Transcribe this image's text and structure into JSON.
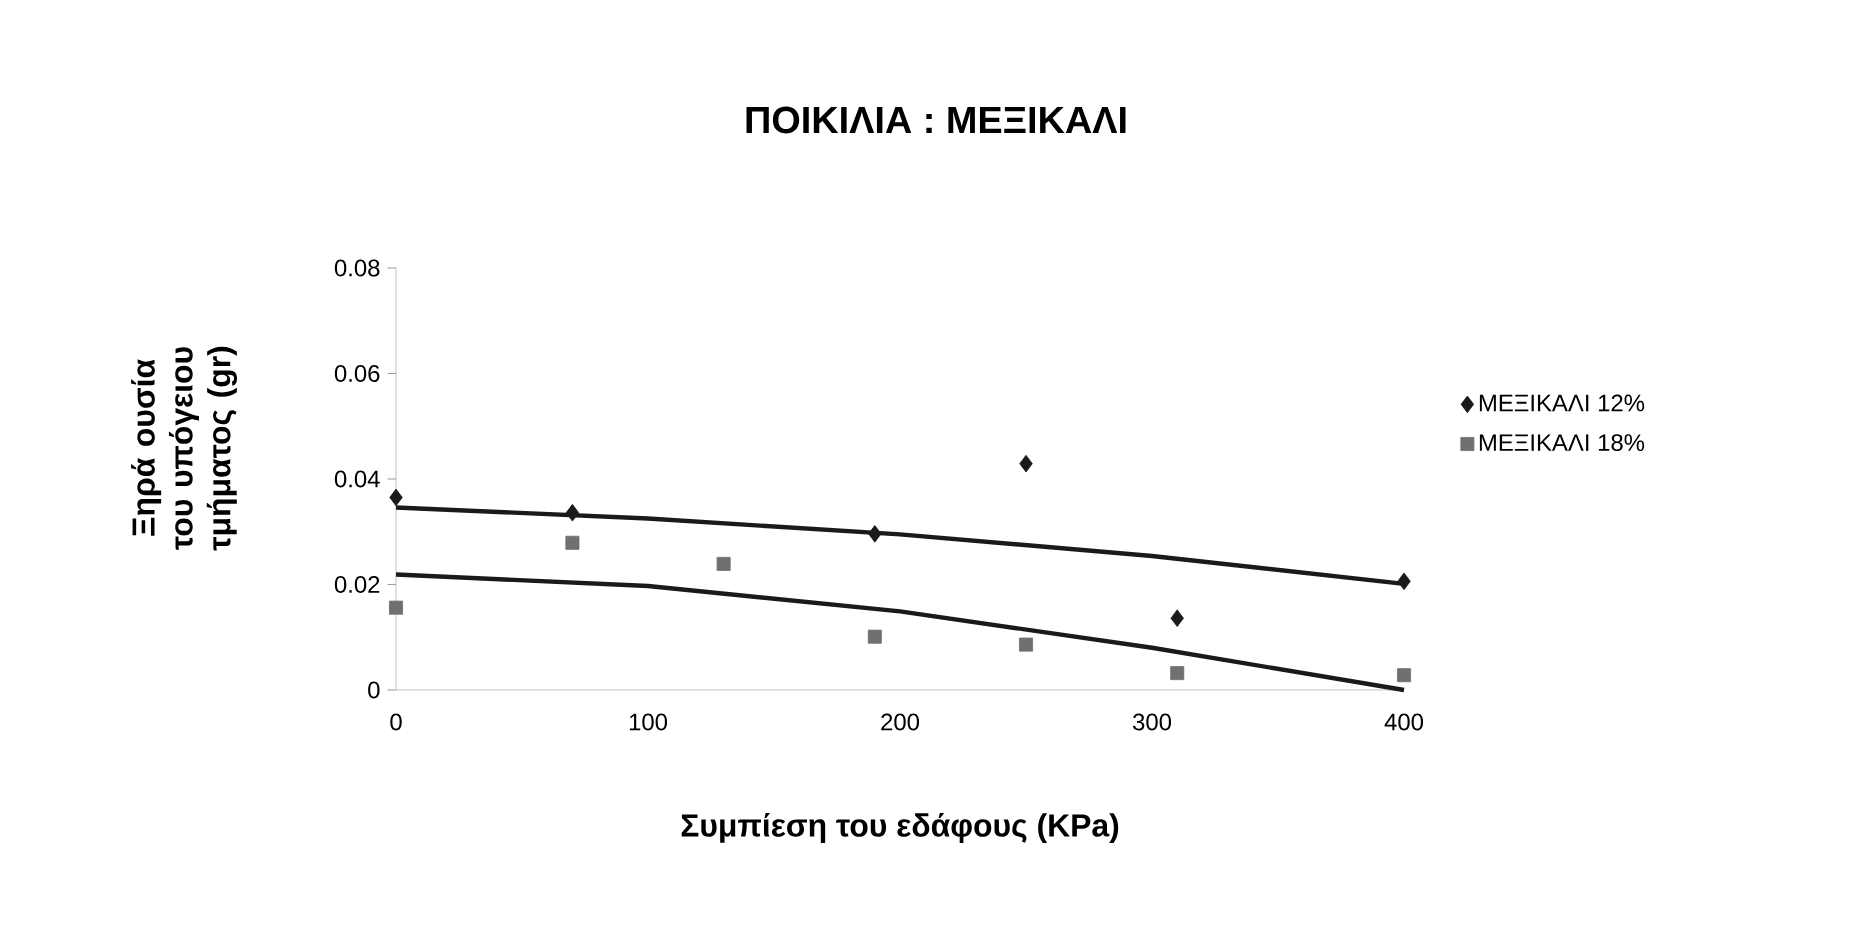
{
  "chart_data": {
    "type": "scatter",
    "title": "ΠΟΙΚΙΛΙΑ : ΜΕΞΙΚΑΛΙ",
    "xlabel": "Συμπίεση του εδάφους (KPa)",
    "ylabel": "Ξηρά ουσία του υπόγειου τμήματος (gr)",
    "xlim": [
      0,
      400
    ],
    "xticks": [
      0,
      100,
      200,
      300,
      400
    ],
    "ylim": [
      0,
      0.08
    ],
    "yticks": [
      0,
      0.02,
      0.04,
      0.06,
      0.08
    ],
    "legend": "right",
    "series": [
      {
        "name": "ΜΕΞΙΚΑΛΙ 12%",
        "color": "#1a1a1a",
        "marker": "diamond",
        "x": [
          0,
          70,
          190,
          250,
          310,
          400
        ],
        "values": [
          0.0365,
          0.0336,
          0.0296,
          0.0429,
          0.0136,
          0.0206
        ]
      },
      {
        "name": "ΜΕΞΙΚΑΛΙ 18%",
        "color": "#707070",
        "marker": "square",
        "x": [
          0,
          70,
          130,
          190,
          250,
          310,
          400
        ],
        "values": [
          0.0156,
          0.0279,
          0.0239,
          0.0101,
          0.0086,
          0.0032,
          0.0028
        ]
      },
      {
        "type": "line",
        "color": "#1a1a1a",
        "x": [
          0,
          100,
          200,
          300,
          400
        ],
        "values": [
          0.0346,
          0.0325,
          0.0295,
          0.0254,
          0.0201
        ]
      },
      {
        "type": "line",
        "color": "#1a1a1a",
        "x": [
          0,
          100,
          200,
          300,
          400
        ],
        "values": [
          0.0219,
          0.0197,
          0.0149,
          0.008,
          0.0
        ]
      }
    ]
  }
}
